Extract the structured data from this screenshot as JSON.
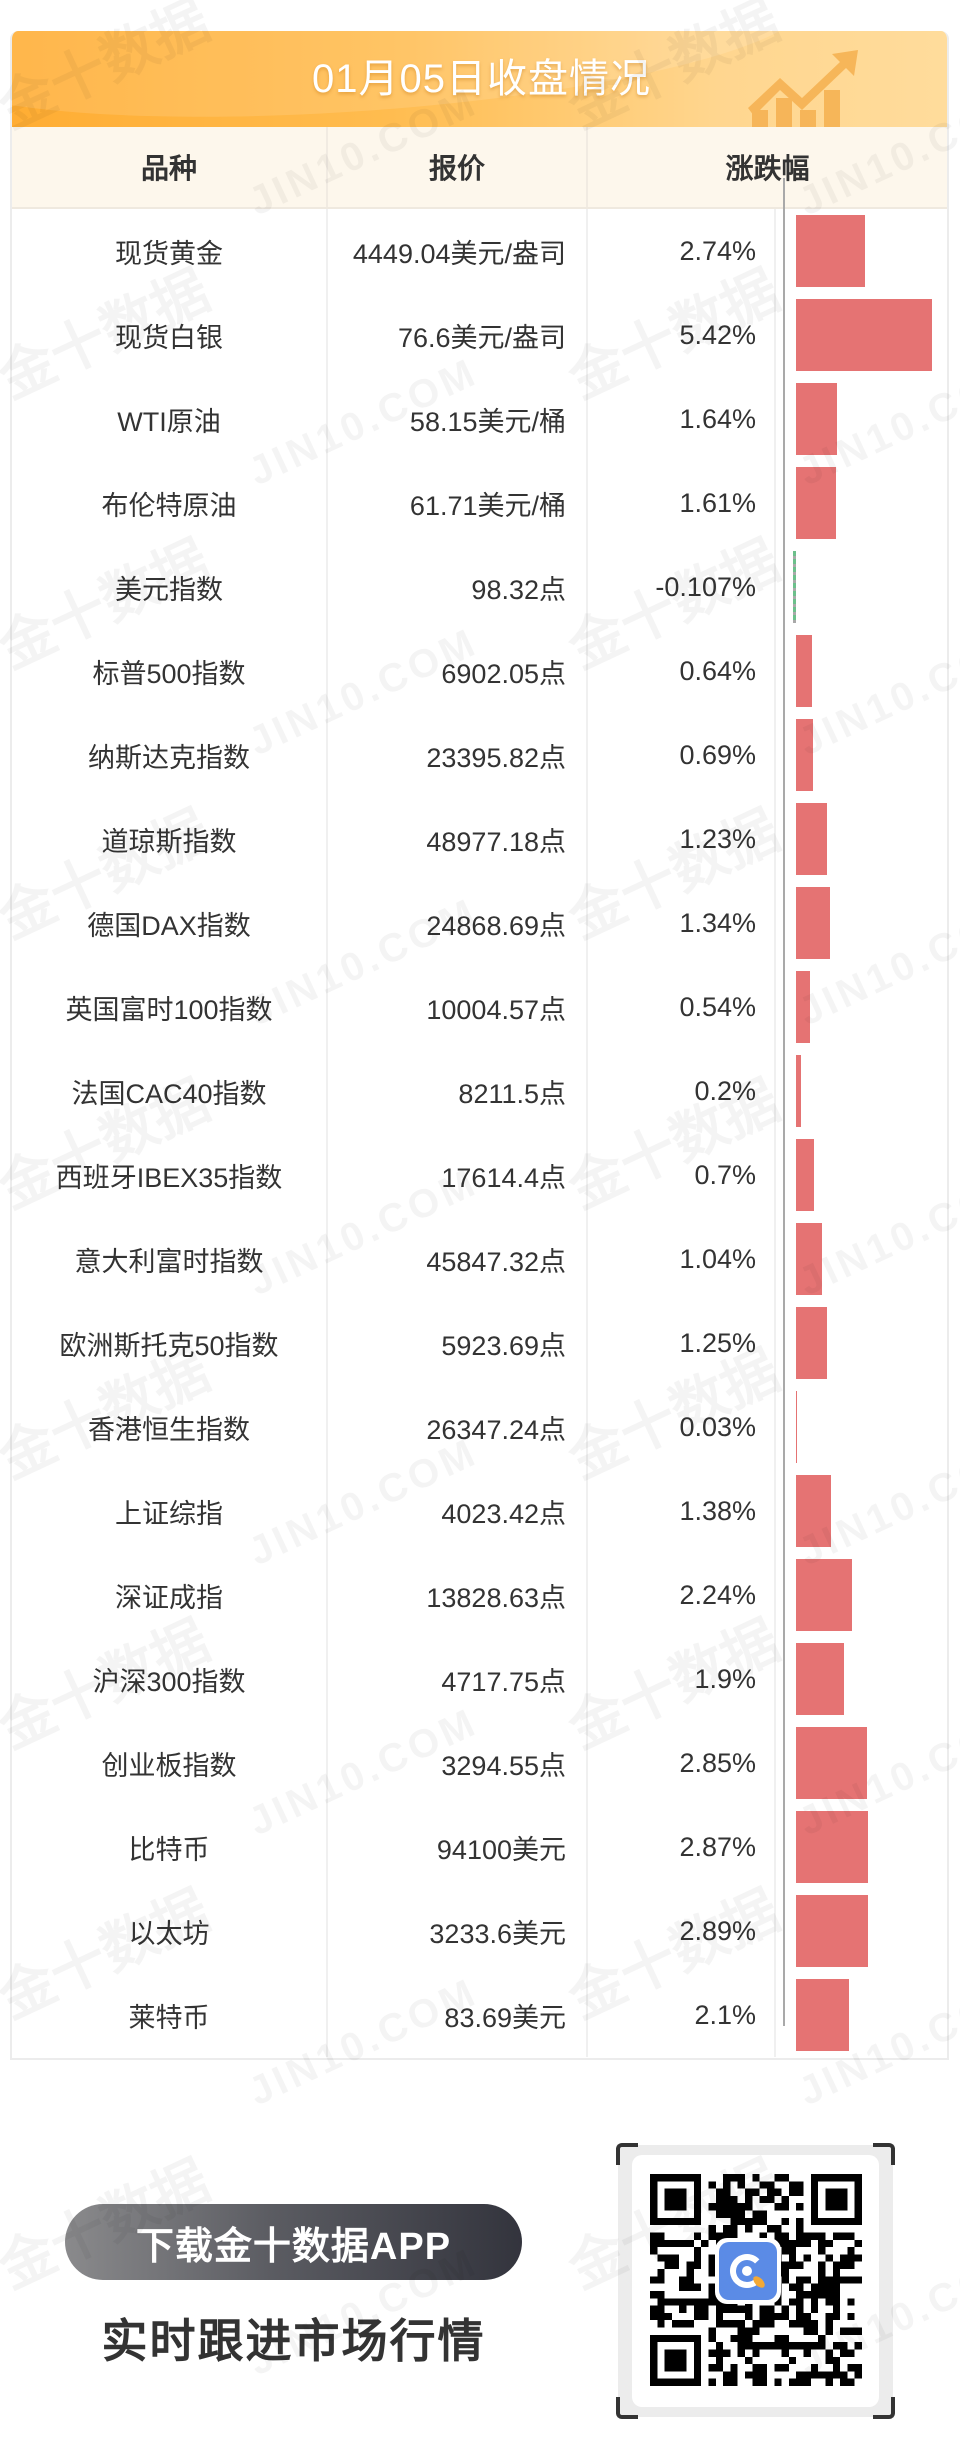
{
  "header": {
    "title": "01月05日收盘情况",
    "icon": "trend-up-chart-icon",
    "brand_color": "#FFB13D"
  },
  "table": {
    "columns": [
      "品种",
      "报价",
      "涨跌幅"
    ],
    "rows": [
      {
        "name": "现货黄金",
        "price": "4449.04美元/盎司",
        "pct": "2.74%"
      },
      {
        "name": "现货白银",
        "price": "76.6美元/盎司",
        "pct": "5.42%"
      },
      {
        "name": "WTI原油",
        "price": "58.15美元/桶",
        "pct": "1.64%"
      },
      {
        "name": "布伦特原油",
        "price": "61.71美元/桶",
        "pct": "1.61%"
      },
      {
        "name": "美元指数",
        "price": "98.32点",
        "pct": "-0.107%"
      },
      {
        "name": "标普500指数",
        "price": "6902.05点",
        "pct": "0.64%"
      },
      {
        "name": "纳斯达克指数",
        "price": "23395.82点",
        "pct": "0.69%"
      },
      {
        "name": "道琼斯指数",
        "price": "48977.18点",
        "pct": "1.23%"
      },
      {
        "name": "德国DAX指数",
        "price": "24868.69点",
        "pct": "1.34%"
      },
      {
        "name": "英国富时100指数",
        "price": "10004.57点",
        "pct": "0.54%"
      },
      {
        "name": "法国CAC40指数",
        "price": "8211.5点",
        "pct": "0.2%"
      },
      {
        "name": "西班牙IBEX35指数",
        "price": "17614.4点",
        "pct": "0.7%"
      },
      {
        "name": "意大利富时指数",
        "price": "45847.32点",
        "pct": "1.04%"
      },
      {
        "name": "欧洲斯托克50指数",
        "price": "5923.69点",
        "pct": "1.25%"
      },
      {
        "name": "香港恒生指数",
        "price": "26347.24点",
        "pct": "0.03%"
      },
      {
        "name": "上证综指",
        "price": "4023.42点",
        "pct": "1.38%"
      },
      {
        "name": "深证成指",
        "price": "13828.63点",
        "pct": "2.24%"
      },
      {
        "name": "沪深300指数",
        "price": "4717.75点",
        "pct": "1.9%"
      },
      {
        "name": "创业板指数",
        "price": "3294.55点",
        "pct": "2.85%"
      },
      {
        "name": "比特币",
        "price": "94100美元",
        "pct": "2.87%"
      },
      {
        "name": "以太坊",
        "price": "3233.6美元",
        "pct": "2.89%"
      },
      {
        "name": "莱特币",
        "price": "83.69美元",
        "pct": "2.1%"
      }
    ],
    "colors": {
      "up": "#E57373",
      "down": "#6CC08B",
      "axis": "#A9A9A9"
    }
  },
  "chart_data": {
    "type": "bar",
    "orientation": "horizontal",
    "title": "01月05日收盘情况",
    "xlabel": "涨跌幅 (%)",
    "ylabel": "品种",
    "categories": [
      "现货黄金",
      "现货白银",
      "WTI原油",
      "布伦特原油",
      "美元指数",
      "标普500指数",
      "纳斯达克指数",
      "道琼斯指数",
      "德国DAX指数",
      "英国富时100指数",
      "法国CAC40指数",
      "西班牙IBEX35指数",
      "意大利富时指数",
      "欧洲斯托克50指数",
      "香港恒生指数",
      "上证综指",
      "深证成指",
      "沪深300指数",
      "创业板指数",
      "比特币",
      "以太坊",
      "莱特币"
    ],
    "values": [
      2.74,
      5.42,
      1.64,
      1.61,
      -0.107,
      0.64,
      0.69,
      1.23,
      1.34,
      0.54,
      0.2,
      0.7,
      1.04,
      1.25,
      0.03,
      1.38,
      2.24,
      1.9,
      2.85,
      2.87,
      2.89,
      2.1
    ],
    "xlim": [
      -0.107,
      5.42
    ],
    "grid": false,
    "legend": null
  },
  "footer": {
    "download_label": "下载金十数据APP",
    "tagline": "实时跟进市场行情",
    "qr_icon": "qr-code-icon",
    "app_logo": "jin10-app-logo-icon"
  },
  "watermark": {
    "cn": "金十数据",
    "en": "JIN10.COM"
  }
}
